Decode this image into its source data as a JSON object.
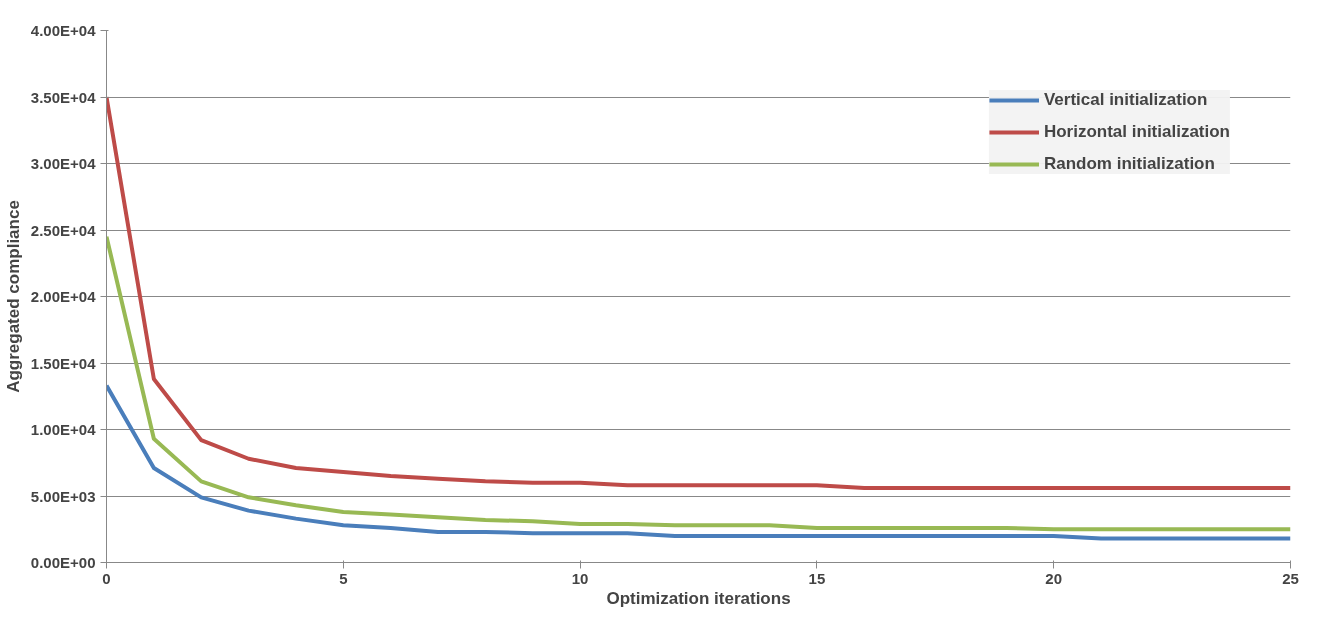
{
  "chart_data": {
    "type": "line",
    "xlabel": "Optimization iterations",
    "ylabel": "Aggregated compliance",
    "x": [
      0,
      1,
      2,
      3,
      4,
      5,
      6,
      7,
      8,
      9,
      10,
      11,
      12,
      13,
      14,
      15,
      16,
      17,
      18,
      19,
      20,
      21,
      22,
      23,
      24,
      25
    ],
    "series": [
      {
        "name": "Vertical initialization",
        "color": "#4a7ebb",
        "values": [
          13300,
          7100,
          4900,
          3900,
          3300,
          2800,
          2600,
          2300,
          2300,
          2200,
          2200,
          2200,
          2000,
          2000,
          2000,
          2000,
          2000,
          2000,
          2000,
          2000,
          2000,
          1800,
          1800,
          1800,
          1800,
          1800
        ]
      },
      {
        "name": "Horizontal initialization",
        "color": "#be4b48",
        "values": [
          35000,
          13800,
          9200,
          7800,
          7100,
          6800,
          6500,
          6300,
          6100,
          6000,
          6000,
          5800,
          5800,
          5800,
          5800,
          5800,
          5600,
          5600,
          5600,
          5600,
          5600,
          5600,
          5600,
          5600,
          5600,
          5600
        ]
      },
      {
        "name": "Random initialization",
        "color": "#98b954",
        "values": [
          24500,
          9300,
          6100,
          4900,
          4300,
          3800,
          3600,
          3400,
          3200,
          3100,
          2900,
          2900,
          2800,
          2800,
          2800,
          2600,
          2600,
          2600,
          2600,
          2600,
          2500,
          2500,
          2500,
          2500,
          2500,
          2500
        ]
      }
    ],
    "xlim": [
      0,
      25
    ],
    "xticks": [
      0,
      5,
      10,
      15,
      20,
      25
    ],
    "ylim": [
      0,
      40000
    ],
    "yticks": [
      {
        "value": 0,
        "label": "0.00E+00"
      },
      {
        "value": 5000,
        "label": "5.00E+03"
      },
      {
        "value": 10000,
        "label": "1.00E+04"
      },
      {
        "value": 15000,
        "label": "1.50E+04"
      },
      {
        "value": 20000,
        "label": "2.00E+04"
      },
      {
        "value": 25000,
        "label": "2.50E+04"
      },
      {
        "value": 30000,
        "label": "3.00E+04"
      },
      {
        "value": 35000,
        "label": "3.50E+04"
      },
      {
        "value": 40000,
        "label": "4.00E+04"
      }
    ],
    "grid": "y",
    "legend": "top right",
    "line_style": "solid",
    "marker": "none"
  }
}
